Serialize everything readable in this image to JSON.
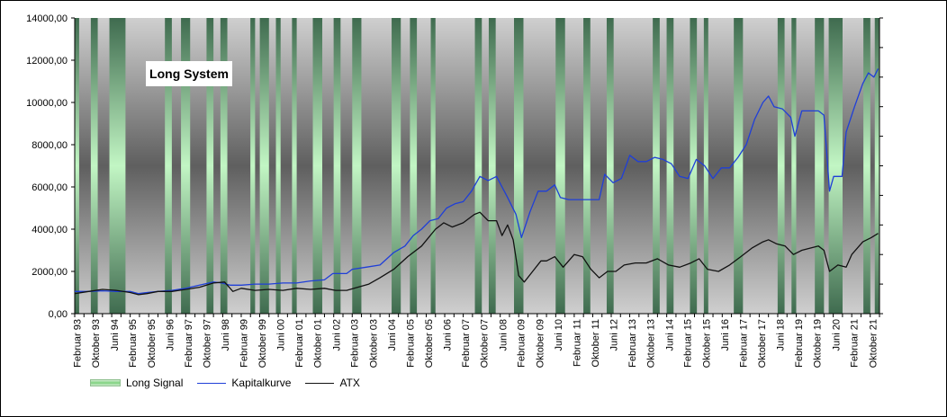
{
  "chart_data": {
    "type": "area",
    "title": "Long System",
    "y_axis": {
      "min": 0,
      "max": 14000,
      "step": 2000,
      "tick_labels": [
        "0,00",
        "2000,00",
        "4000,00",
        "6000,00",
        "8000,00",
        "10000,00",
        "12000,00",
        "14000,00"
      ]
    },
    "x_axis": {
      "start": 1993.0,
      "end": 2022.0,
      "tick_labels": [
        {
          "t": 1993.08,
          "label": "Februar 93"
        },
        {
          "t": 1993.75,
          "label": "Oktober 93"
        },
        {
          "t": 1994.42,
          "label": "Juni 94"
        },
        {
          "t": 1995.08,
          "label": "Februar 95"
        },
        {
          "t": 1995.75,
          "label": "Oktober 95"
        },
        {
          "t": 1996.42,
          "label": "Juni 96"
        },
        {
          "t": 1997.08,
          "label": "Februar 97"
        },
        {
          "t": 1997.75,
          "label": "Oktober 97"
        },
        {
          "t": 1998.42,
          "label": "Juni 98"
        },
        {
          "t": 1999.08,
          "label": "Februar 99"
        },
        {
          "t": 1999.75,
          "label": "Oktober 99"
        },
        {
          "t": 2000.42,
          "label": "Juni 00"
        },
        {
          "t": 2001.08,
          "label": "Februar 01"
        },
        {
          "t": 2001.75,
          "label": "Oktober 01"
        },
        {
          "t": 2002.42,
          "label": "Juni 02"
        },
        {
          "t": 2003.08,
          "label": "Februar 03"
        },
        {
          "t": 2003.75,
          "label": "Oktober 03"
        },
        {
          "t": 2004.42,
          "label": "Juni 04"
        },
        {
          "t": 2005.08,
          "label": "Februar 05"
        },
        {
          "t": 2005.75,
          "label": "Oktober 05"
        },
        {
          "t": 2006.42,
          "label": "Juni 06"
        },
        {
          "t": 2007.08,
          "label": "Februar 07"
        },
        {
          "t": 2007.75,
          "label": "Oktober 07"
        },
        {
          "t": 2008.42,
          "label": "Juni 08"
        },
        {
          "t": 2009.08,
          "label": "Februar 09"
        },
        {
          "t": 2009.75,
          "label": "Oktober 09"
        },
        {
          "t": 2010.42,
          "label": "Juni 10"
        },
        {
          "t": 2011.08,
          "label": "Februar 11"
        },
        {
          "t": 2011.75,
          "label": "Oktober 11"
        },
        {
          "t": 2012.42,
          "label": "Juni 12"
        },
        {
          "t": 2013.08,
          "label": "Februar 13"
        },
        {
          "t": 2013.75,
          "label": "Oktober 13"
        },
        {
          "t": 2014.42,
          "label": "Juni 14"
        },
        {
          "t": 2015.08,
          "label": "Februar 15"
        },
        {
          "t": 2015.75,
          "label": "Oktober 15"
        },
        {
          "t": 2016.42,
          "label": "Juni 16"
        },
        {
          "t": 2017.08,
          "label": "Februar 17"
        },
        {
          "t": 2017.75,
          "label": "Oktober 17"
        },
        {
          "t": 2018.42,
          "label": "Juni 18"
        },
        {
          "t": 2019.08,
          "label": "Februar 19"
        },
        {
          "t": 2019.75,
          "label": "Oktober 19"
        },
        {
          "t": 2020.42,
          "label": "Juni 20"
        },
        {
          "t": 2021.08,
          "label": "Februar 21"
        },
        {
          "t": 2021.75,
          "label": "Oktober 21"
        }
      ]
    },
    "long_signal_periods": [
      [
        1993.16,
        1993.58
      ],
      [
        1993.83,
        1994.25
      ],
      [
        1994.83,
        1996.25
      ],
      [
        1996.5,
        1996.83
      ],
      [
        1997.16,
        1997.75
      ],
      [
        1998.0,
        1998.25
      ],
      [
        1998.5,
        1999.33
      ],
      [
        1999.5,
        1999.67
      ],
      [
        2000.0,
        2000.25
      ],
      [
        2000.42,
        2000.83
      ],
      [
        2001.0,
        2001.58
      ],
      [
        2001.92,
        2002.33
      ],
      [
        2002.58,
        2003.0
      ],
      [
        2003.33,
        2004.42
      ],
      [
        2004.75,
        2005.08
      ],
      [
        2005.33,
        2005.83
      ],
      [
        2006.0,
        2007.42
      ],
      [
        2007.67,
        2007.92
      ],
      [
        2008.17,
        2008.83
      ],
      [
        2009.17,
        2010.33
      ],
      [
        2010.67,
        2011.33
      ],
      [
        2011.58,
        2012.17
      ],
      [
        2012.42,
        2013.83
      ],
      [
        2014.08,
        2014.33
      ],
      [
        2014.58,
        2015.17
      ],
      [
        2015.42,
        2015.67
      ],
      [
        2015.83,
        2016.75
      ],
      [
        2017.08,
        2018.33
      ],
      [
        2018.58,
        2018.83
      ],
      [
        2019.0,
        2019.67
      ],
      [
        2020.0,
        2020.17
      ],
      [
        2020.67,
        2021.42
      ],
      [
        2021.67,
        2021.83
      ]
    ],
    "series": [
      {
        "name": "Long Signal",
        "color": "#7fd27f"
      },
      {
        "name": "Kapitalkurve",
        "color": "#1f3fd8",
        "points": [
          [
            1993.0,
            1050
          ],
          [
            1993.5,
            1050
          ],
          [
            1994.0,
            1080
          ],
          [
            1994.5,
            1050
          ],
          [
            1995.0,
            1050
          ],
          [
            1995.3,
            950
          ],
          [
            1995.6,
            1000
          ],
          [
            1996.0,
            1050
          ],
          [
            1996.5,
            1100
          ],
          [
            1997.0,
            1200
          ],
          [
            1997.5,
            1350
          ],
          [
            1998.0,
            1500
          ],
          [
            1998.3,
            1450
          ],
          [
            1998.6,
            1350
          ],
          [
            1999.0,
            1350
          ],
          [
            1999.5,
            1400
          ],
          [
            2000.0,
            1400
          ],
          [
            2000.5,
            1450
          ],
          [
            2001.0,
            1450
          ],
          [
            2001.5,
            1550
          ],
          [
            2002.0,
            1600
          ],
          [
            2002.3,
            1900
          ],
          [
            2002.8,
            1900
          ],
          [
            2003.0,
            2100
          ],
          [
            2003.5,
            2200
          ],
          [
            2004.0,
            2300
          ],
          [
            2004.5,
            2900
          ],
          [
            2004.9,
            3200
          ],
          [
            2005.2,
            3700
          ],
          [
            2005.5,
            4000
          ],
          [
            2005.8,
            4400
          ],
          [
            2006.1,
            4500
          ],
          [
            2006.4,
            5000
          ],
          [
            2006.7,
            5200
          ],
          [
            2007.0,
            5300
          ],
          [
            2007.3,
            5800
          ],
          [
            2007.6,
            6500
          ],
          [
            2007.9,
            6300
          ],
          [
            2008.2,
            6500
          ],
          [
            2008.4,
            6000
          ],
          [
            2008.6,
            5500
          ],
          [
            2008.9,
            4700
          ],
          [
            2009.1,
            3600
          ],
          [
            2009.4,
            4800
          ],
          [
            2009.7,
            5800
          ],
          [
            2010.0,
            5800
          ],
          [
            2010.3,
            6100
          ],
          [
            2010.5,
            5500
          ],
          [
            2010.8,
            5400
          ],
          [
            2011.2,
            5400
          ],
          [
            2011.6,
            5400
          ],
          [
            2011.9,
            5400
          ],
          [
            2012.1,
            6600
          ],
          [
            2012.4,
            6200
          ],
          [
            2012.7,
            6400
          ],
          [
            2013.0,
            7500
          ],
          [
            2013.3,
            7200
          ],
          [
            2013.6,
            7200
          ],
          [
            2013.9,
            7400
          ],
          [
            2014.2,
            7300
          ],
          [
            2014.5,
            7100
          ],
          [
            2014.8,
            6500
          ],
          [
            2015.1,
            6400
          ],
          [
            2015.4,
            7300
          ],
          [
            2015.7,
            7000
          ],
          [
            2016.0,
            6400
          ],
          [
            2016.3,
            6900
          ],
          [
            2016.6,
            6900
          ],
          [
            2016.9,
            7400
          ],
          [
            2017.2,
            8000
          ],
          [
            2017.5,
            9200
          ],
          [
            2017.8,
            10000
          ],
          [
            2018.0,
            10300
          ],
          [
            2018.2,
            9800
          ],
          [
            2018.5,
            9700
          ],
          [
            2018.8,
            9300
          ],
          [
            2018.95,
            8400
          ],
          [
            2019.2,
            9600
          ],
          [
            2019.5,
            9600
          ],
          [
            2019.8,
            9600
          ],
          [
            2020.0,
            9400
          ],
          [
            2020.2,
            5800
          ],
          [
            2020.35,
            6500
          ],
          [
            2020.65,
            6500
          ],
          [
            2020.8,
            8600
          ],
          [
            2021.1,
            9800
          ],
          [
            2021.4,
            10900
          ],
          [
            2021.6,
            11400
          ],
          [
            2021.8,
            11200
          ],
          [
            2021.95,
            11600
          ]
        ]
      },
      {
        "name": "ATX",
        "color": "#111111",
        "points": [
          [
            1993.0,
            950
          ],
          [
            1993.5,
            1050
          ],
          [
            1994.0,
            1150
          ],
          [
            1994.5,
            1100
          ],
          [
            1995.0,
            1000
          ],
          [
            1995.3,
            900
          ],
          [
            1995.6,
            950
          ],
          [
            1996.0,
            1050
          ],
          [
            1996.5,
            1050
          ],
          [
            1997.0,
            1150
          ],
          [
            1997.5,
            1250
          ],
          [
            1998.0,
            1450
          ],
          [
            1998.4,
            1500
          ],
          [
            1998.7,
            1050
          ],
          [
            1999.0,
            1200
          ],
          [
            1999.5,
            1100
          ],
          [
            2000.0,
            1150
          ],
          [
            2000.5,
            1100
          ],
          [
            2001.0,
            1200
          ],
          [
            2001.5,
            1150
          ],
          [
            2002.0,
            1200
          ],
          [
            2002.4,
            1100
          ],
          [
            2002.8,
            1100
          ],
          [
            2003.2,
            1250
          ],
          [
            2003.6,
            1400
          ],
          [
            2004.0,
            1700
          ],
          [
            2004.5,
            2100
          ],
          [
            2005.0,
            2700
          ],
          [
            2005.5,
            3200
          ],
          [
            2006.0,
            4000
          ],
          [
            2006.3,
            4300
          ],
          [
            2006.6,
            4100
          ],
          [
            2007.0,
            4300
          ],
          [
            2007.4,
            4700
          ],
          [
            2007.6,
            4800
          ],
          [
            2007.9,
            4400
          ],
          [
            2008.2,
            4400
          ],
          [
            2008.4,
            3700
          ],
          [
            2008.6,
            4200
          ],
          [
            2008.8,
            3500
          ],
          [
            2009.0,
            1800
          ],
          [
            2009.2,
            1500
          ],
          [
            2009.5,
            2000
          ],
          [
            2009.8,
            2500
          ],
          [
            2010.0,
            2500
          ],
          [
            2010.3,
            2700
          ],
          [
            2010.6,
            2200
          ],
          [
            2011.0,
            2800
          ],
          [
            2011.3,
            2700
          ],
          [
            2011.6,
            2100
          ],
          [
            2011.9,
            1700
          ],
          [
            2012.2,
            2000
          ],
          [
            2012.5,
            2000
          ],
          [
            2012.8,
            2300
          ],
          [
            2013.2,
            2400
          ],
          [
            2013.6,
            2400
          ],
          [
            2014.0,
            2600
          ],
          [
            2014.4,
            2300
          ],
          [
            2014.8,
            2200
          ],
          [
            2015.2,
            2400
          ],
          [
            2015.5,
            2600
          ],
          [
            2015.8,
            2100
          ],
          [
            2016.2,
            2000
          ],
          [
            2016.6,
            2300
          ],
          [
            2017.0,
            2700
          ],
          [
            2017.4,
            3100
          ],
          [
            2017.8,
            3400
          ],
          [
            2018.0,
            3500
          ],
          [
            2018.3,
            3300
          ],
          [
            2018.6,
            3200
          ],
          [
            2018.9,
            2800
          ],
          [
            2019.2,
            3000
          ],
          [
            2019.5,
            3100
          ],
          [
            2019.8,
            3200
          ],
          [
            2020.0,
            3000
          ],
          [
            2020.2,
            2000
          ],
          [
            2020.5,
            2300
          ],
          [
            2020.8,
            2200
          ],
          [
            2021.0,
            2800
          ],
          [
            2021.4,
            3400
          ],
          [
            2021.7,
            3600
          ],
          [
            2021.95,
            3800
          ]
        ]
      }
    ],
    "grid": false,
    "legend_position": "bottom-left"
  }
}
